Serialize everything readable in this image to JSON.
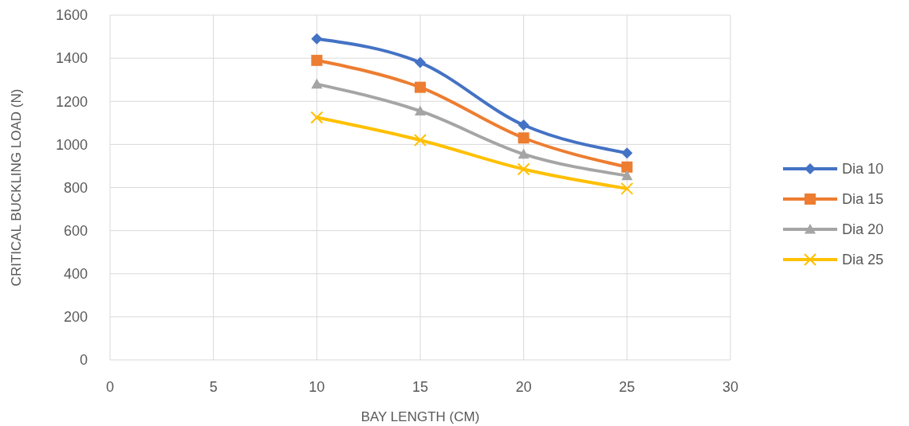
{
  "chart_data": {
    "type": "line",
    "xlabel": "BAY LENGTH (CM)",
    "ylabel": "CRITICAL BUCKLING LOAD (N)",
    "x": [
      10,
      15,
      20,
      25
    ],
    "xlim": [
      0,
      30
    ],
    "xticks": [
      0,
      5,
      10,
      15,
      20,
      25,
      30
    ],
    "ylim": [
      0,
      1600
    ],
    "yticks": [
      0,
      200,
      400,
      600,
      800,
      1000,
      1200,
      1400,
      1600
    ],
    "grid": true,
    "legend": "right",
    "series": [
      {
        "name": "Dia 10",
        "color": "#4472c4",
        "marker": "diamond",
        "values": [
          1490,
          1380,
          1090,
          960
        ]
      },
      {
        "name": "Dia 15",
        "color": "#ed7d31",
        "marker": "square",
        "values": [
          1390,
          1265,
          1030,
          895
        ]
      },
      {
        "name": "Dia 20",
        "color": "#a5a5a5",
        "marker": "triangle",
        "values": [
          1280,
          1155,
          955,
          855
        ]
      },
      {
        "name": "Dia 25",
        "color": "#ffc000",
        "marker": "cross",
        "values": [
          1125,
          1020,
          885,
          795
        ]
      }
    ]
  }
}
